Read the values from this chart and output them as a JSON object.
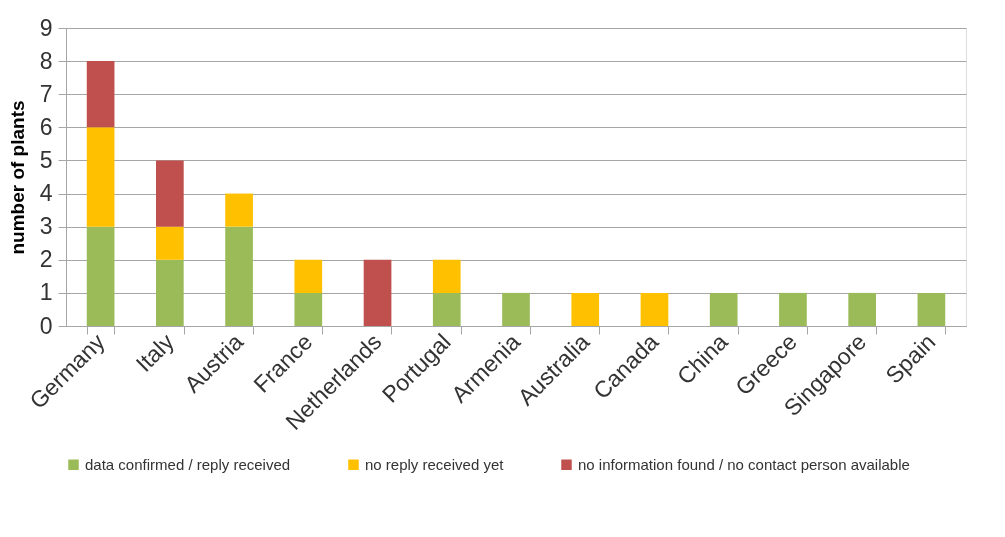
{
  "chart_data": {
    "type": "bar",
    "stacked": true,
    "ylabel": "number of plants",
    "categories": [
      "Germany",
      "Italy",
      "Austria",
      "France",
      "Netherlands",
      "Portugal",
      "Armenia",
      "Australia",
      "Canada",
      "China",
      "Greece",
      "Singapore",
      "Spain"
    ],
    "series": [
      {
        "name": "data confirmed / reply received",
        "color": "#9bbb59",
        "values": [
          3,
          2,
          3,
          1,
          0,
          1,
          1,
          0,
          0,
          1,
          1,
          1,
          1
        ]
      },
      {
        "name": "no reply received yet",
        "color": "#ffc000",
        "values": [
          3,
          1,
          1,
          1,
          0,
          1,
          0,
          1,
          1,
          0,
          0,
          0,
          0
        ]
      },
      {
        "name": "no information found / no contact person available",
        "color": "#c0504d",
        "values": [
          2,
          2,
          0,
          0,
          2,
          0,
          0,
          0,
          0,
          0,
          0,
          0,
          0
        ]
      }
    ],
    "ylim": [
      0,
      9
    ],
    "yticks": [
      0,
      1,
      2,
      3,
      4,
      5,
      6,
      7,
      8,
      9
    ],
    "grid": "y",
    "legend": "bottom"
  }
}
